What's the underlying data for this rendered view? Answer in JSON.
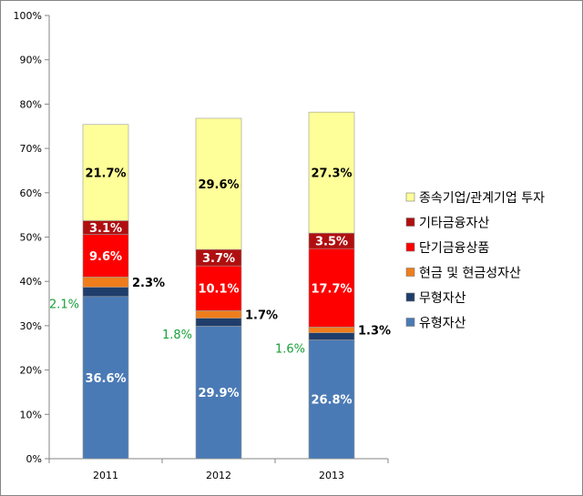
{
  "chart_data": {
    "type": "bar",
    "stacked": true,
    "categories": [
      "2011",
      "2012",
      "2013"
    ],
    "ylim": [
      0,
      100
    ],
    "y_ticks": [
      "0%",
      "10%",
      "20%",
      "30%",
      "40%",
      "50%",
      "60%",
      "70%",
      "80%",
      "90%",
      "100%"
    ],
    "legend_position": "right",
    "series": [
      {
        "name": "유형자산",
        "color": "#4a7ab5",
        "values": [
          36.6,
          29.9,
          26.8
        ],
        "labels": [
          "36.6%",
          "29.9%",
          "26.8%"
        ],
        "label_style": "inside-white"
      },
      {
        "name": "무형자산",
        "color": "#1f3d6b",
        "values": [
          2.1,
          1.8,
          1.6
        ],
        "labels": [
          "2.1%",
          "1.8%",
          "1.6%"
        ],
        "label_style": "left-green"
      },
      {
        "name": "현금 및 현금성자산",
        "color": "#ef7d1c",
        "values": [
          2.3,
          1.7,
          1.3
        ],
        "labels": [
          "2.3%",
          "1.7%",
          "1.3%"
        ],
        "label_style": "right-black"
      },
      {
        "name": "단기금융상품",
        "color": "#ff0000",
        "values": [
          9.6,
          10.1,
          17.7
        ],
        "labels": [
          "9.6%",
          "10.1%",
          "17.7%"
        ],
        "label_style": "inside-white"
      },
      {
        "name": "기타금융자산",
        "color": "#b00f10",
        "values": [
          3.1,
          3.7,
          3.5
        ],
        "labels": [
          "3.1%",
          "3.7%",
          "3.5%"
        ],
        "label_style": "inside-white"
      },
      {
        "name": "종속기업/관계기업 투자",
        "color": "#ffff99",
        "values": [
          21.7,
          29.6,
          27.3
        ],
        "labels": [
          "21.7%",
          "29.6%",
          "27.3%"
        ],
        "label_style": "inside-black"
      }
    ]
  }
}
